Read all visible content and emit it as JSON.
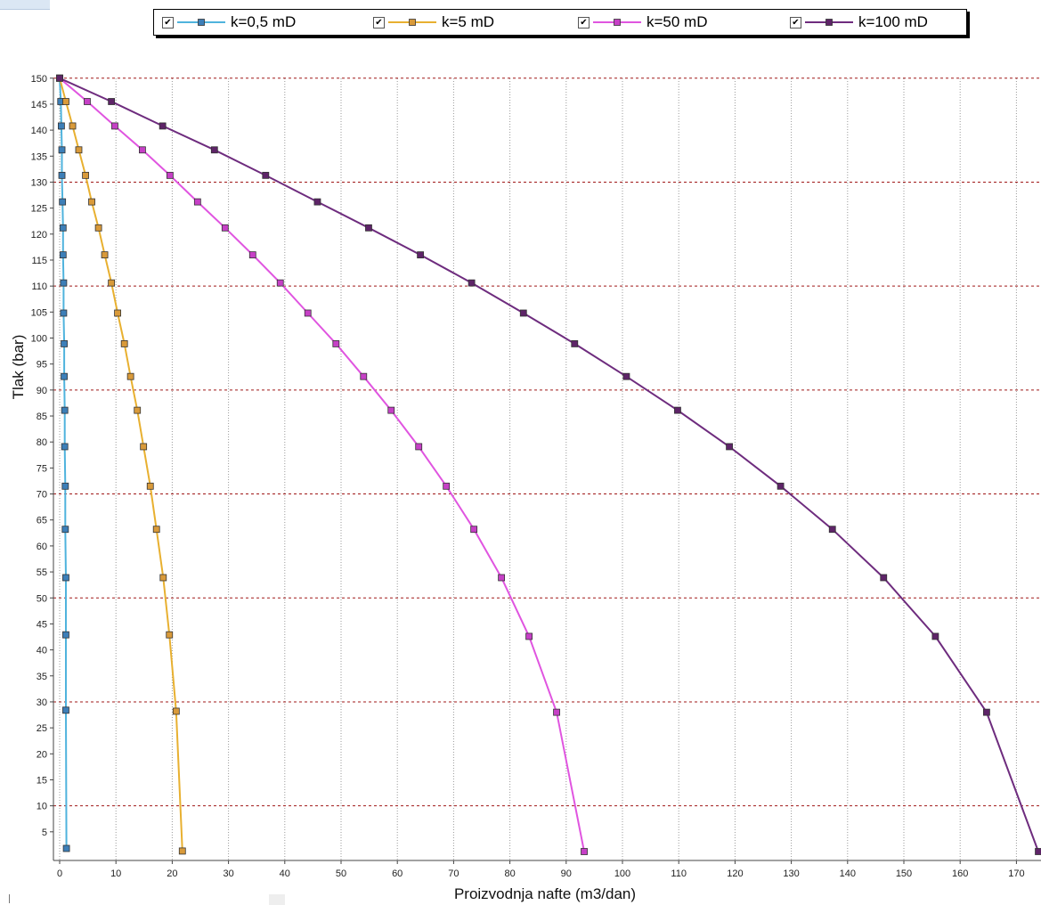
{
  "chart_data": {
    "type": "line",
    "xlabel": "Proizvodnja nafte (m3/dan)",
    "ylabel": "Tlak (bar)",
    "xlim": [
      -1,
      174
    ],
    "ylim": [
      0,
      151
    ],
    "xticks": [
      0,
      10,
      20,
      30,
      40,
      50,
      60,
      70,
      80,
      90,
      100,
      110,
      120,
      130,
      140,
      150,
      160,
      170
    ],
    "yticks": [
      5,
      10,
      15,
      20,
      25,
      30,
      35,
      40,
      45,
      50,
      55,
      60,
      65,
      70,
      75,
      80,
      85,
      90,
      95,
      100,
      105,
      110,
      115,
      120,
      125,
      130,
      135,
      140,
      145,
      150
    ],
    "y_gridlines_dashed": [
      10,
      30,
      50,
      70,
      90,
      110,
      130,
      150
    ],
    "grid": true,
    "legend_position": "top",
    "series": [
      {
        "name": "k=0,5 mD",
        "color": "#4fb3dd",
        "marker_color": "#3d7fb8",
        "x": [
          0.0,
          0.2,
          0.3,
          0.4,
          0.4,
          0.5,
          0.6,
          0.6,
          0.7,
          0.7,
          0.8,
          0.8,
          0.9,
          0.9,
          1.0,
          1.0,
          1.1,
          1.1,
          1.1,
          1.2
        ],
        "y": [
          150.0,
          145.5,
          140.8,
          136.2,
          131.3,
          126.2,
          121.2,
          116.0,
          110.6,
          104.8,
          98.9,
          92.6,
          86.1,
          79.1,
          71.5,
          63.2,
          53.9,
          42.9,
          28.4,
          1.8
        ]
      },
      {
        "name": "k=5 mD",
        "color": "#e8b030",
        "marker_color": "#d99a3a",
        "x": [
          0.0,
          1.1,
          2.3,
          3.4,
          4.6,
          5.7,
          6.9,
          8.0,
          9.2,
          10.3,
          11.5,
          12.6,
          13.8,
          14.9,
          16.1,
          17.2,
          18.4,
          19.5,
          20.7,
          21.8
        ],
        "y": [
          150.0,
          145.5,
          140.8,
          136.2,
          131.3,
          126.2,
          121.2,
          116.0,
          110.6,
          104.8,
          98.9,
          92.6,
          86.1,
          79.1,
          71.5,
          63.2,
          53.9,
          42.9,
          28.2,
          1.3
        ]
      },
      {
        "name": "k=50 mD",
        "color": "#e055e0",
        "marker_color": "#c640c6",
        "x": [
          0.0,
          4.9,
          9.8,
          14.7,
          19.6,
          24.5,
          29.4,
          34.3,
          39.2,
          44.1,
          49.1,
          54.0,
          58.9,
          63.8,
          68.7,
          73.6,
          78.5,
          83.4,
          88.3,
          93.2
        ],
        "y": [
          150.0,
          145.5,
          140.8,
          136.2,
          131.3,
          126.2,
          121.2,
          116.0,
          110.6,
          104.8,
          98.9,
          92.6,
          86.1,
          79.1,
          71.5,
          63.2,
          53.9,
          42.6,
          28.0,
          1.2
        ]
      },
      {
        "name": "k=100 mD",
        "color": "#6e2c7e",
        "marker_color": "#5e2468",
        "x": [
          0.0,
          9.2,
          18.3,
          27.5,
          36.6,
          45.8,
          54.9,
          64.1,
          73.2,
          82.4,
          91.5,
          100.7,
          109.8,
          119.0,
          128.1,
          137.3,
          146.4,
          155.6,
          164.7,
          173.9
        ],
        "y": [
          150.0,
          145.5,
          140.8,
          136.2,
          131.3,
          126.2,
          121.2,
          116.0,
          110.6,
          104.8,
          98.9,
          92.6,
          86.1,
          79.1,
          71.5,
          63.2,
          53.9,
          42.6,
          28.0,
          1.2
        ]
      }
    ]
  },
  "legend": {
    "check_glyph": "✔",
    "items": [
      {
        "label": "k=0,5 mD",
        "checked": true
      },
      {
        "label": "k=5 mD",
        "checked": true
      },
      {
        "label": "k=50 mD",
        "checked": true
      },
      {
        "label": "k=100 mD",
        "checked": true
      }
    ]
  },
  "colors": {
    "grid_dashed": "#a01818",
    "grid_dotted": "#9a9a9a",
    "axis": "#444444"
  }
}
